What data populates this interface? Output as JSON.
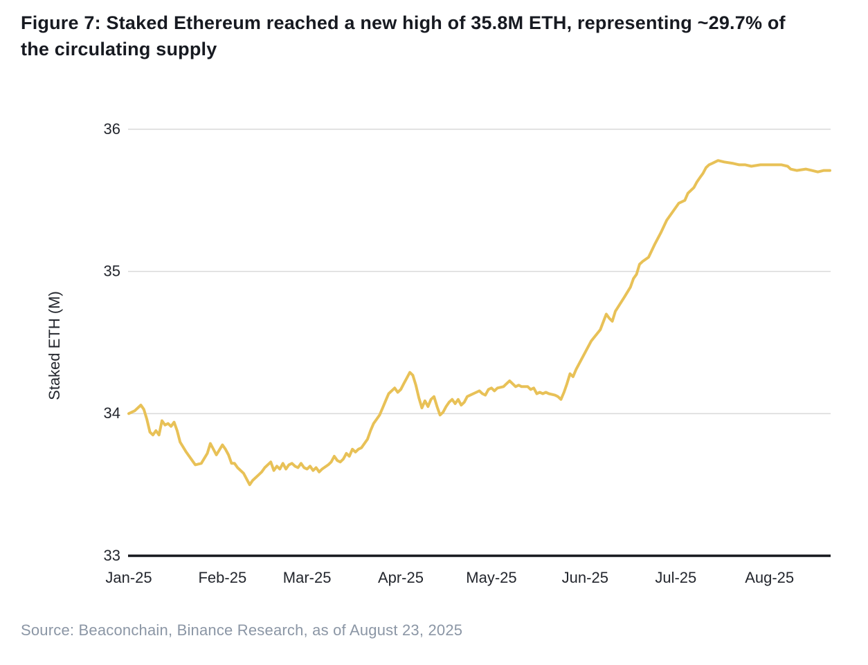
{
  "header": {
    "title_line1": "Figure 7: Staked Ethereum reached a new high of 35.8M ETH, representing ~29.7% of",
    "title_line2": "the circulating supply"
  },
  "footer": {
    "source": "Source: Beaconchain, Binance Research, as of August 23, 2025"
  },
  "colors": {
    "line": "#e8c157",
    "grid": "#d9d9d9",
    "axis": "#15171c",
    "title_text": "#171a21",
    "tick_text": "#23262d",
    "source_text": "#8b96a5"
  },
  "chart_data": {
    "type": "line",
    "title": "Staked Ethereum",
    "ylabel": "Staked ETH (M)",
    "xlabel": "",
    "ylim": [
      33,
      36
    ],
    "xlim_days": [
      0,
      232
    ],
    "x_unit": "days since Jan 1, 2025",
    "grid": "horizontal",
    "legend": "none",
    "y_ticks": [
      33,
      34,
      35,
      36
    ],
    "x_ticks": [
      {
        "label": "Jan-25",
        "day": 0
      },
      {
        "label": "Feb-25",
        "day": 31
      },
      {
        "label": "Mar-25",
        "day": 59
      },
      {
        "label": "Apr-25",
        "day": 90
      },
      {
        "label": "May-25",
        "day": 120
      },
      {
        "label": "Jun-25",
        "day": 151
      },
      {
        "label": "Jul-25",
        "day": 181
      },
      {
        "label": "Aug-25",
        "day": 212
      }
    ],
    "series": [
      {
        "name": "Staked ETH (M)",
        "color": "#e8c157",
        "points": [
          [
            0,
            34.0
          ],
          [
            2,
            34.02
          ],
          [
            4,
            34.06
          ],
          [
            5,
            34.03
          ],
          [
            6,
            33.96
          ],
          [
            7,
            33.87
          ],
          [
            8,
            33.85
          ],
          [
            9,
            33.88
          ],
          [
            10,
            33.85
          ],
          [
            11,
            33.95
          ],
          [
            12,
            33.92
          ],
          [
            13,
            33.93
          ],
          [
            14,
            33.91
          ],
          [
            15,
            33.94
          ],
          [
            16,
            33.88
          ],
          [
            17,
            33.8
          ],
          [
            19,
            33.73
          ],
          [
            21,
            33.67
          ],
          [
            22,
            33.64
          ],
          [
            24,
            33.65
          ],
          [
            26,
            33.72
          ],
          [
            27,
            33.79
          ],
          [
            29,
            33.71
          ],
          [
            31,
            33.78
          ],
          [
            32,
            33.75
          ],
          [
            33,
            33.71
          ],
          [
            34,
            33.65
          ],
          [
            35,
            33.65
          ],
          [
            36,
            33.62
          ],
          [
            37,
            33.6
          ],
          [
            38,
            33.58
          ],
          [
            40,
            33.5
          ],
          [
            41,
            33.53
          ],
          [
            43,
            33.57
          ],
          [
            44,
            33.59
          ],
          [
            45,
            33.62
          ],
          [
            47,
            33.66
          ],
          [
            48,
            33.6
          ],
          [
            49,
            33.63
          ],
          [
            50,
            33.61
          ],
          [
            51,
            33.65
          ],
          [
            52,
            33.61
          ],
          [
            53,
            33.64
          ],
          [
            54,
            33.65
          ],
          [
            55,
            33.63
          ],
          [
            56,
            33.62
          ],
          [
            57,
            33.65
          ],
          [
            58,
            33.62
          ],
          [
            59,
            33.61
          ],
          [
            60,
            33.63
          ],
          [
            61,
            33.6
          ],
          [
            62,
            33.62
          ],
          [
            63,
            33.59
          ],
          [
            64,
            33.61
          ],
          [
            66,
            33.64
          ],
          [
            67,
            33.66
          ],
          [
            68,
            33.7
          ],
          [
            69,
            33.67
          ],
          [
            70,
            33.66
          ],
          [
            71,
            33.68
          ],
          [
            72,
            33.72
          ],
          [
            73,
            33.7
          ],
          [
            74,
            33.75
          ],
          [
            75,
            33.73
          ],
          [
            76,
            33.75
          ],
          [
            77,
            33.76
          ],
          [
            79,
            33.82
          ],
          [
            80,
            33.88
          ],
          [
            81,
            33.93
          ],
          [
            82,
            33.96
          ],
          [
            83,
            33.99
          ],
          [
            84,
            34.04
          ],
          [
            85,
            34.09
          ],
          [
            86,
            34.14
          ],
          [
            88,
            34.18
          ],
          [
            89,
            34.15
          ],
          [
            90,
            34.17
          ],
          [
            91,
            34.21
          ],
          [
            92,
            34.25
          ],
          [
            93,
            34.29
          ],
          [
            94,
            34.27
          ],
          [
            95,
            34.2
          ],
          [
            96,
            34.11
          ],
          [
            97,
            34.04
          ],
          [
            98,
            34.09
          ],
          [
            99,
            34.05
          ],
          [
            100,
            34.1
          ],
          [
            101,
            34.12
          ],
          [
            102,
            34.05
          ],
          [
            103,
            33.99
          ],
          [
            104,
            34.01
          ],
          [
            105,
            34.05
          ],
          [
            106,
            34.08
          ],
          [
            107,
            34.1
          ],
          [
            108,
            34.07
          ],
          [
            109,
            34.1
          ],
          [
            110,
            34.06
          ],
          [
            111,
            34.08
          ],
          [
            112,
            34.12
          ],
          [
            113,
            34.13
          ],
          [
            115,
            34.15
          ],
          [
            116,
            34.16
          ],
          [
            117,
            34.14
          ],
          [
            118,
            34.13
          ],
          [
            119,
            34.17
          ],
          [
            120,
            34.18
          ],
          [
            121,
            34.16
          ],
          [
            122,
            34.18
          ],
          [
            124,
            34.19
          ],
          [
            125,
            34.21
          ],
          [
            126,
            34.23
          ],
          [
            127,
            34.21
          ],
          [
            128,
            34.19
          ],
          [
            129,
            34.2
          ],
          [
            130,
            34.19
          ],
          [
            132,
            34.19
          ],
          [
            133,
            34.17
          ],
          [
            134,
            34.18
          ],
          [
            135,
            34.14
          ],
          [
            136,
            34.15
          ],
          [
            137,
            34.14
          ],
          [
            138,
            34.15
          ],
          [
            139,
            34.14
          ],
          [
            141,
            34.13
          ],
          [
            142,
            34.12
          ],
          [
            143,
            34.1
          ],
          [
            144,
            34.15
          ],
          [
            145,
            34.21
          ],
          [
            146,
            34.28
          ],
          [
            147,
            34.26
          ],
          [
            148,
            34.31
          ],
          [
            149,
            34.35
          ],
          [
            151,
            34.43
          ],
          [
            153,
            34.51
          ],
          [
            156,
            34.59
          ],
          [
            158,
            34.7
          ],
          [
            159,
            34.67
          ],
          [
            160,
            34.65
          ],
          [
            161,
            34.72
          ],
          [
            164,
            34.82
          ],
          [
            166,
            34.89
          ],
          [
            167,
            34.95
          ],
          [
            168,
            34.98
          ],
          [
            169,
            35.05
          ],
          [
            170,
            35.07
          ],
          [
            172,
            35.1
          ],
          [
            174,
            35.19
          ],
          [
            176,
            35.27
          ],
          [
            178,
            35.36
          ],
          [
            181,
            35.45
          ],
          [
            182,
            35.48
          ],
          [
            183,
            35.49
          ],
          [
            184,
            35.5
          ],
          [
            185,
            35.55
          ],
          [
            187,
            35.59
          ],
          [
            188,
            35.63
          ],
          [
            189,
            35.66
          ],
          [
            190,
            35.69
          ],
          [
            191,
            35.73
          ],
          [
            192,
            35.75
          ],
          [
            193,
            35.76
          ],
          [
            195,
            35.78
          ],
          [
            197,
            35.77
          ],
          [
            200,
            35.76
          ],
          [
            202,
            35.75
          ],
          [
            204,
            35.75
          ],
          [
            206,
            35.74
          ],
          [
            209,
            35.75
          ],
          [
            211,
            35.75
          ],
          [
            214,
            35.75
          ],
          [
            216,
            35.75
          ],
          [
            218,
            35.74
          ],
          [
            219,
            35.72
          ],
          [
            221,
            35.71
          ],
          [
            224,
            35.72
          ],
          [
            226,
            35.71
          ],
          [
            228,
            35.7
          ],
          [
            230,
            35.71
          ],
          [
            232,
            35.71
          ]
        ]
      }
    ]
  }
}
